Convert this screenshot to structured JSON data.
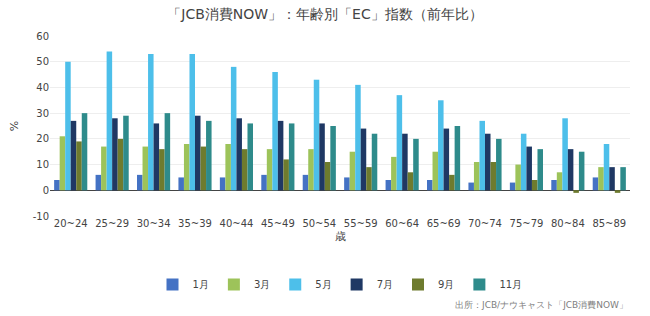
{
  "chart_data": {
    "type": "bar",
    "title": "「JCB消費NOW」：年齢別「EC」指数（前年比）",
    "categories": [
      "20~24",
      "25~29",
      "30~34",
      "35~39",
      "40~44",
      "45~49",
      "50~54",
      "55~59",
      "60~64",
      "65~69",
      "70~74",
      "75~79",
      "80~84",
      "85~89"
    ],
    "series": [
      {
        "name": "1月",
        "color": "#4472C4",
        "values": [
          4,
          6,
          6,
          5,
          5,
          6,
          6,
          5,
          4,
          4,
          3,
          3,
          4,
          5
        ]
      },
      {
        "name": "3月",
        "color": "#9DC35A",
        "values": [
          21,
          17,
          17,
          18,
          18,
          16,
          16,
          15,
          13,
          15,
          11,
          10,
          7,
          9
        ]
      },
      {
        "name": "5月",
        "color": "#4DBFEA",
        "values": [
          50,
          54,
          53,
          53,
          48,
          46,
          43,
          41,
          37,
          35,
          27,
          22,
          28,
          18
        ]
      },
      {
        "name": "7月",
        "color": "#1F3864",
        "values": [
          27,
          28,
          26,
          29,
          28,
          27,
          26,
          24,
          22,
          24,
          22,
          17,
          16,
          9
        ]
      },
      {
        "name": "9月",
        "color": "#6E7B2E",
        "values": [
          19,
          20,
          16,
          17,
          16,
          12,
          11,
          9,
          7,
          6,
          11,
          4,
          -1,
          -1
        ]
      },
      {
        "name": "11月",
        "color": "#2E8B8B",
        "values": [
          30,
          29,
          30,
          27,
          26,
          26,
          25,
          22,
          20,
          25,
          20,
          16,
          15,
          9
        ]
      }
    ],
    "ylabel": "%",
    "xlabel": "歳",
    "ylim": [
      -10,
      60
    ],
    "yticks": [
      -10,
      0,
      10,
      20,
      30,
      40,
      50,
      60
    ],
    "annotations": [
      "出所：JCB/ナウキャスト「JCB消費NOW」"
    ],
    "grid": true,
    "legend": "bottom"
  }
}
